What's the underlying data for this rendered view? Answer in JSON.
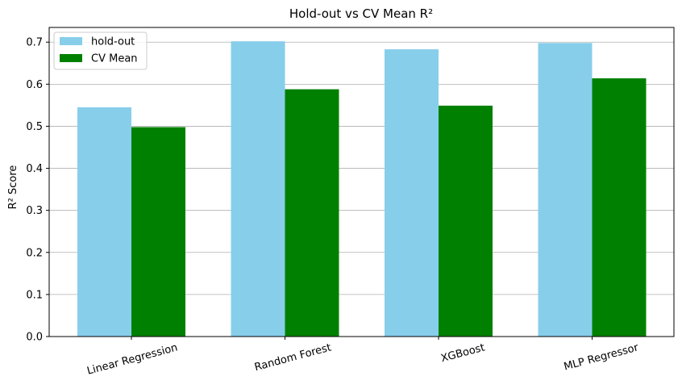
{
  "chart_data": {
    "type": "bar",
    "title": "Hold-out vs CV Mean R²",
    "xlabel": "",
    "ylabel": "R² Score",
    "categories": [
      "Linear Regression",
      "Random Forest",
      "XGBoost",
      "MLP Regressor"
    ],
    "series": [
      {
        "name": "hold-out",
        "color": "#87ceeb",
        "values": [
          0.545,
          0.702,
          0.683,
          0.698
        ]
      },
      {
        "name": "CV Mean",
        "color": "#008000",
        "values": [
          0.498,
          0.588,
          0.549,
          0.614
        ]
      }
    ],
    "ylim": [
      0,
      0.735
    ],
    "yticks": [
      "0.0",
      "0.1",
      "0.2",
      "0.3",
      "0.4",
      "0.5",
      "0.6",
      "0.7"
    ],
    "grid": "y",
    "legend_position": "top-left"
  }
}
